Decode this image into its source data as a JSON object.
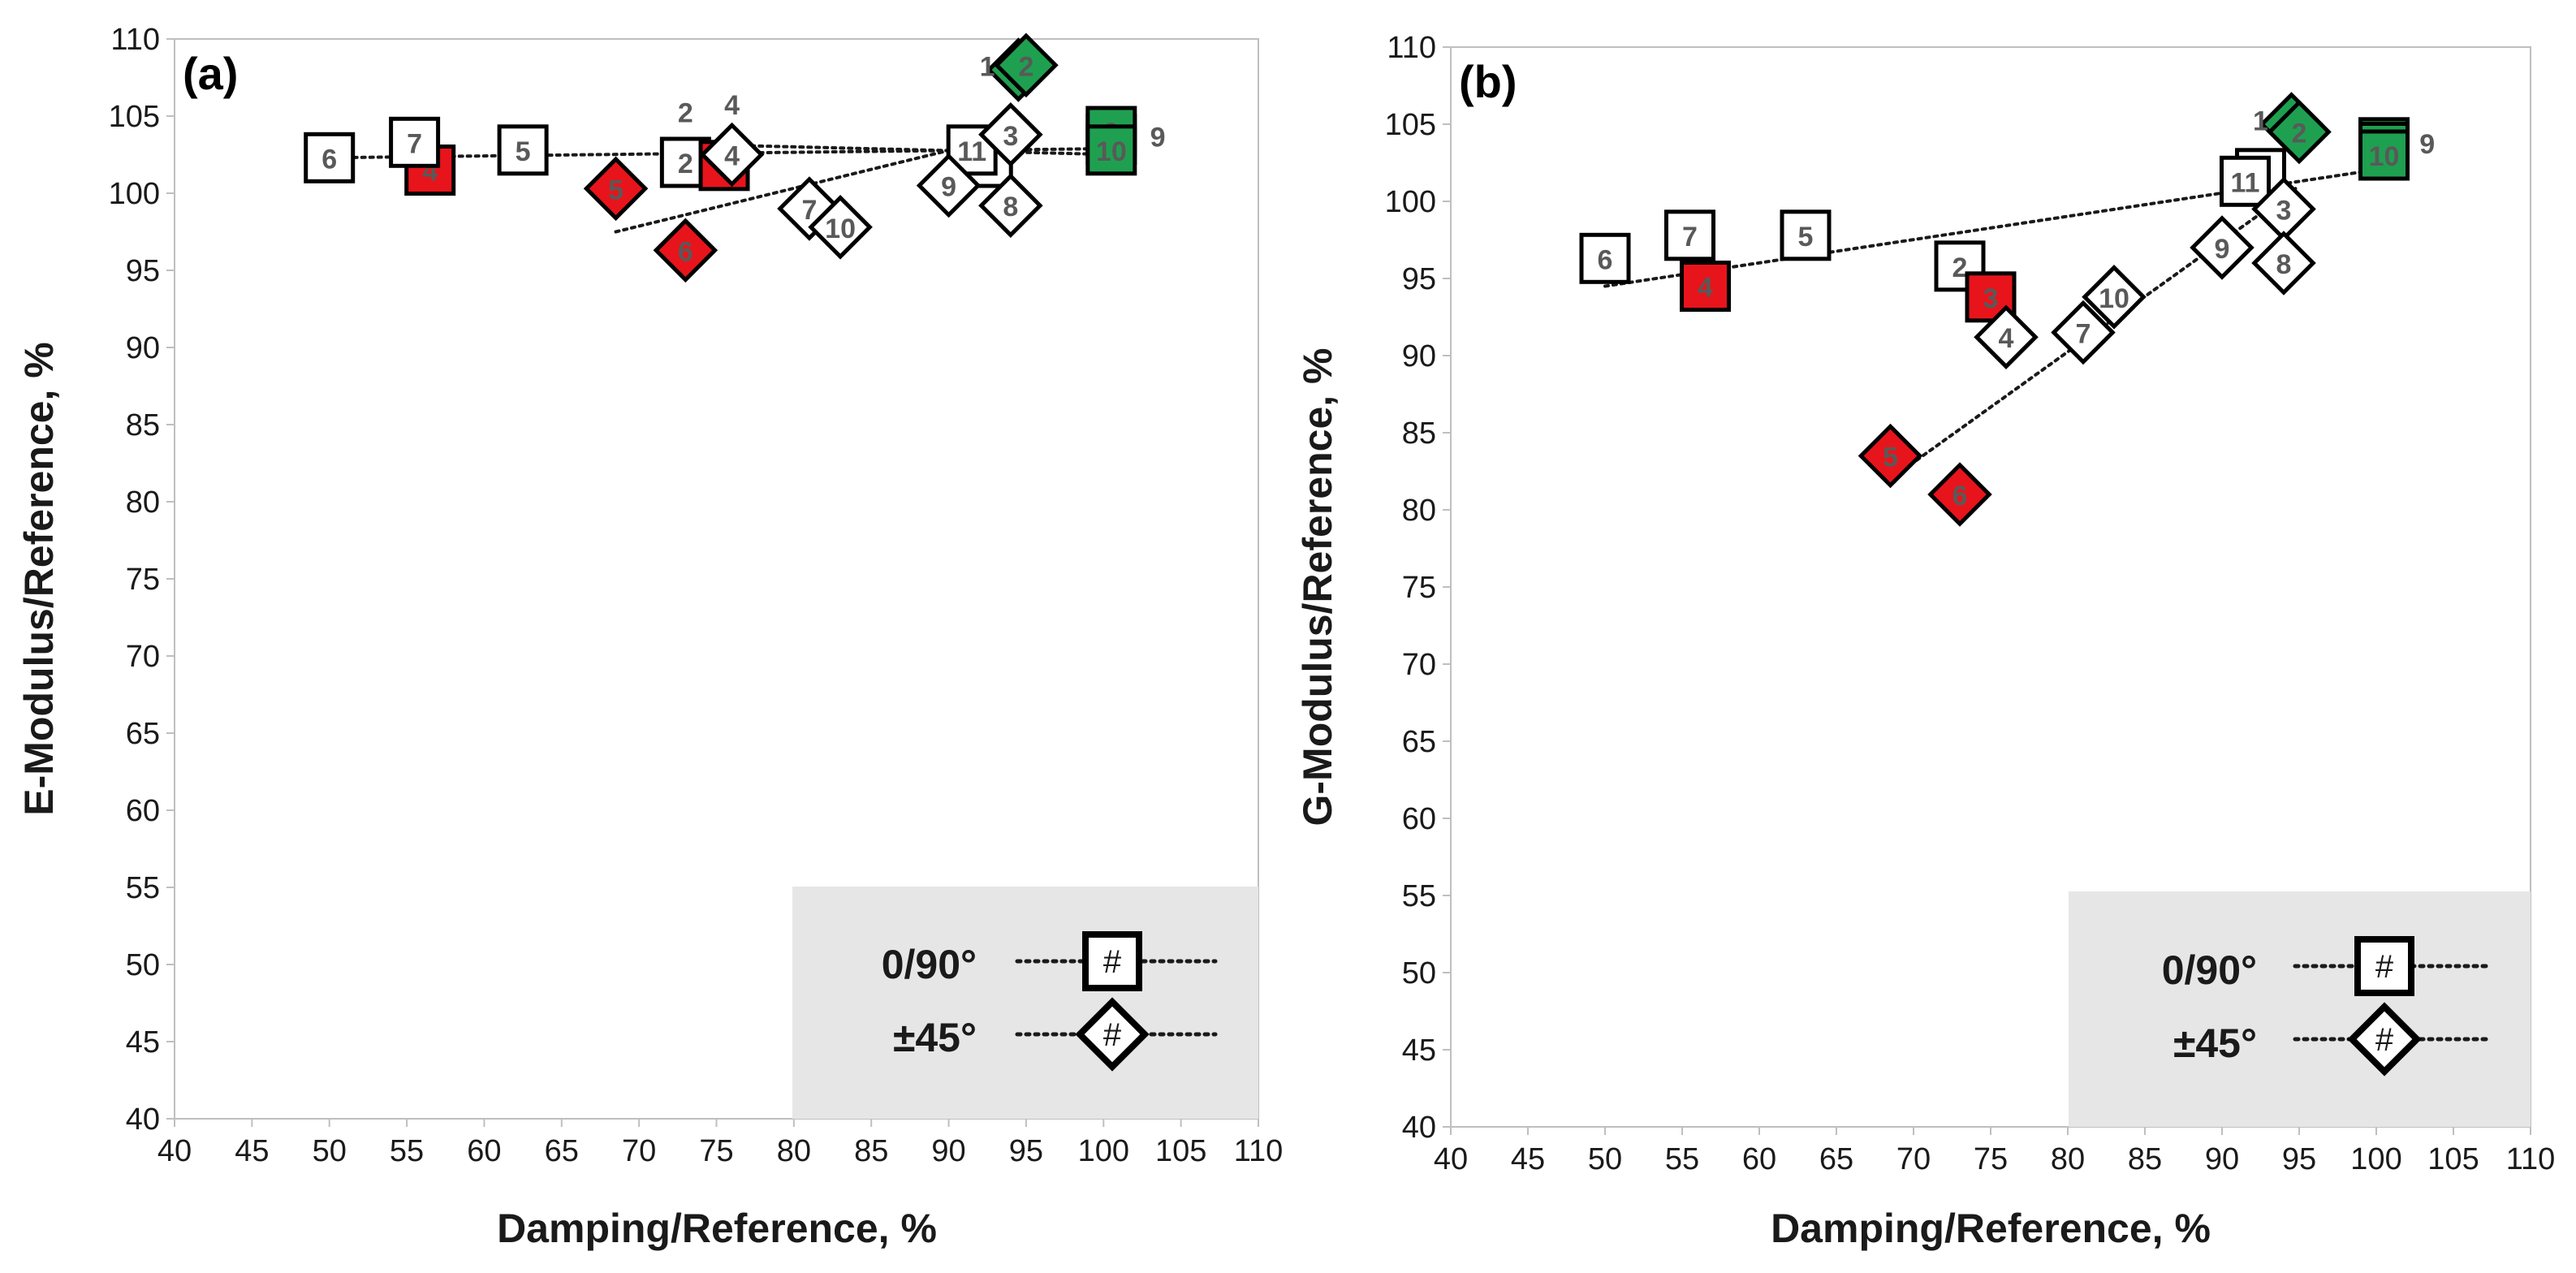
{
  "chart_data": [
    {
      "type": "scatter",
      "panel_label": "(a)",
      "xlabel": "Damping/Reference, %",
      "ylabel": "E-Modulus/Reference, %",
      "xlim": [
        40,
        110
      ],
      "ylim": [
        40,
        110
      ],
      "xticks": [
        "40",
        "45",
        "50",
        "55",
        "60",
        "65",
        "70",
        "75",
        "80",
        "85",
        "90",
        "95",
        "100",
        "105",
        "110"
      ],
      "yticks": [
        "40",
        "45",
        "50",
        "55",
        "60",
        "65",
        "70",
        "75",
        "80",
        "85",
        "90",
        "95",
        "100",
        "105",
        "110"
      ],
      "grid": false,
      "legend_position": "bottom-right",
      "series": [
        {
          "name": "0/90°",
          "marker": "square",
          "points": [
            {
              "label": "1",
              "x": 100.5,
              "y": 103.5,
              "color": "green"
            },
            {
              "label": "2",
              "x": 73.0,
              "y": 102.0,
              "color": "white"
            },
            {
              "label": "3",
              "x": 75.5,
              "y": 101.8,
              "color": "red"
            },
            {
              "label": "4",
              "x": 56.5,
              "y": 101.5,
              "color": "red"
            },
            {
              "label": "5",
              "x": 62.5,
              "y": 102.8,
              "color": "white"
            },
            {
              "label": "6",
              "x": 50.0,
              "y": 102.3,
              "color": "white"
            },
            {
              "label": "7",
              "x": 55.5,
              "y": 103.3,
              "color": "white"
            },
            {
              "label": "8",
              "x": 92.5,
              "y": 102.0,
              "color": "white"
            },
            {
              "label": "9",
              "x": 100.5,
              "y": 104.0,
              "color": "green"
            },
            {
              "label": "10",
              "x": 100.5,
              "y": 102.8,
              "color": "green"
            },
            {
              "label": "11",
              "x": 91.5,
              "y": 102.8,
              "color": "white"
            }
          ]
        },
        {
          "name": "±45°",
          "marker": "diamond",
          "points": [
            {
              "label": "1",
              "x": 94.5,
              "y": 108.0,
              "color": "green"
            },
            {
              "label": "2",
              "x": 95.0,
              "y": 108.3,
              "color": "green"
            },
            {
              "label": "3",
              "x": 94.0,
              "y": 103.8,
              "color": "white"
            },
            {
              "label": "4",
              "x": 76.0,
              "y": 102.5,
              "color": "white"
            },
            {
              "label": "5",
              "x": 68.5,
              "y": 100.3,
              "color": "red"
            },
            {
              "label": "6",
              "x": 73.0,
              "y": 96.3,
              "color": "red"
            },
            {
              "label": "7",
              "x": 81.0,
              "y": 99.0,
              "color": "white"
            },
            {
              "label": "8",
              "x": 94.0,
              "y": 99.2,
              "color": "white"
            },
            {
              "label": "9",
              "x": 90.0,
              "y": 100.5,
              "color": "white"
            },
            {
              "label": "10",
              "x": 83.0,
              "y": 97.8,
              "color": "white"
            }
          ]
        }
      ],
      "trendlines": [
        {
          "series": "0/90°",
          "x": [
            50,
            101
          ],
          "y": [
            102.3,
            102.9
          ]
        },
        {
          "series": "±45°",
          "x": [
            68.5,
            95
          ],
          "y": [
            97.5,
            104
          ]
        },
        {
          "series": "±45°",
          "x": [
            72,
            101
          ],
          "y": [
            103.2,
            102.5
          ]
        }
      ],
      "floating_labels": [
        {
          "text": "1",
          "x": 92.5,
          "y": 108.3
        },
        {
          "text": "2",
          "x": 73.0,
          "y": 105.3
        },
        {
          "text": "4",
          "x": 76.0,
          "y": 105.8
        },
        {
          "text": "9",
          "x": 103.5,
          "y": 103.7
        }
      ]
    },
    {
      "type": "scatter",
      "panel_label": "(b)",
      "xlabel": "Damping/Reference, %",
      "ylabel": "G-Modulus/Reference, %",
      "xlim": [
        40,
        110
      ],
      "ylim": [
        40,
        110
      ],
      "xticks": [
        "40",
        "45",
        "50",
        "55",
        "60",
        "65",
        "70",
        "75",
        "80",
        "85",
        "90",
        "95",
        "100",
        "105",
        "110"
      ],
      "yticks": [
        "40",
        "45",
        "50",
        "55",
        "60",
        "65",
        "70",
        "75",
        "80",
        "85",
        "90",
        "95",
        "100",
        "105",
        "110"
      ],
      "grid": false,
      "legend_position": "bottom-right",
      "series": [
        {
          "name": "0/90°",
          "marker": "square",
          "points": [
            {
              "label": "1",
              "x": 100.5,
              "y": 103.8,
              "color": "green"
            },
            {
              "label": "2",
              "x": 73.0,
              "y": 95.8,
              "color": "white"
            },
            {
              "label": "3",
              "x": 75.0,
              "y": 93.8,
              "color": "red"
            },
            {
              "label": "4",
              "x": 56.5,
              "y": 94.5,
              "color": "red"
            },
            {
              "label": "5",
              "x": 63.0,
              "y": 97.8,
              "color": "white"
            },
            {
              "label": "6",
              "x": 50.0,
              "y": 96.3,
              "color": "white"
            },
            {
              "label": "7",
              "x": 55.5,
              "y": 97.8,
              "color": "white"
            },
            {
              "label": "8",
              "x": 92.5,
              "y": 101.8,
              "color": "white"
            },
            {
              "label": "9",
              "x": 100.5,
              "y": 103.5,
              "color": "green"
            },
            {
              "label": "10",
              "x": 100.5,
              "y": 103.0,
              "color": "green"
            },
            {
              "label": "11",
              "x": 91.5,
              "y": 101.3,
              "color": "white"
            }
          ]
        },
        {
          "name": "±45°",
          "marker": "diamond",
          "points": [
            {
              "label": "1",
              "x": 94.5,
              "y": 105.0,
              "color": "green"
            },
            {
              "label": "2",
              "x": 95.0,
              "y": 104.5,
              "color": "green"
            },
            {
              "label": "3",
              "x": 94.0,
              "y": 99.5,
              "color": "white"
            },
            {
              "label": "4",
              "x": 76.0,
              "y": 91.2,
              "color": "white"
            },
            {
              "label": "5",
              "x": 68.5,
              "y": 83.5,
              "color": "red"
            },
            {
              "label": "6",
              "x": 73.0,
              "y": 81.0,
              "color": "red"
            },
            {
              "label": "7",
              "x": 81.0,
              "y": 91.5,
              "color": "white"
            },
            {
              "label": "8",
              "x": 94.0,
              "y": 96.0,
              "color": "white"
            },
            {
              "label": "9",
              "x": 90.0,
              "y": 97.0,
              "color": "white"
            },
            {
              "label": "10",
              "x": 83.0,
              "y": 93.8,
              "color": "white"
            }
          ]
        }
      ],
      "trendlines": [
        {
          "series": "0/90°",
          "x": [
            50,
            101
          ],
          "y": [
            94.5,
            102.2
          ]
        },
        {
          "series": "±45°",
          "x": [
            68.5,
            95
          ],
          "y": [
            82.0,
            101.0
          ]
        }
      ],
      "floating_labels": [
        {
          "text": "1",
          "x": 92.5,
          "y": 105.3
        },
        {
          "text": "9",
          "x": 103.3,
          "y": 103.8
        }
      ]
    }
  ],
  "colors": {
    "green": "#1fa050",
    "red": "#e8141b",
    "white": "#ffffff",
    "stroke": "#000000",
    "label": "#595959",
    "legend_bg": "#e6e6e6"
  }
}
